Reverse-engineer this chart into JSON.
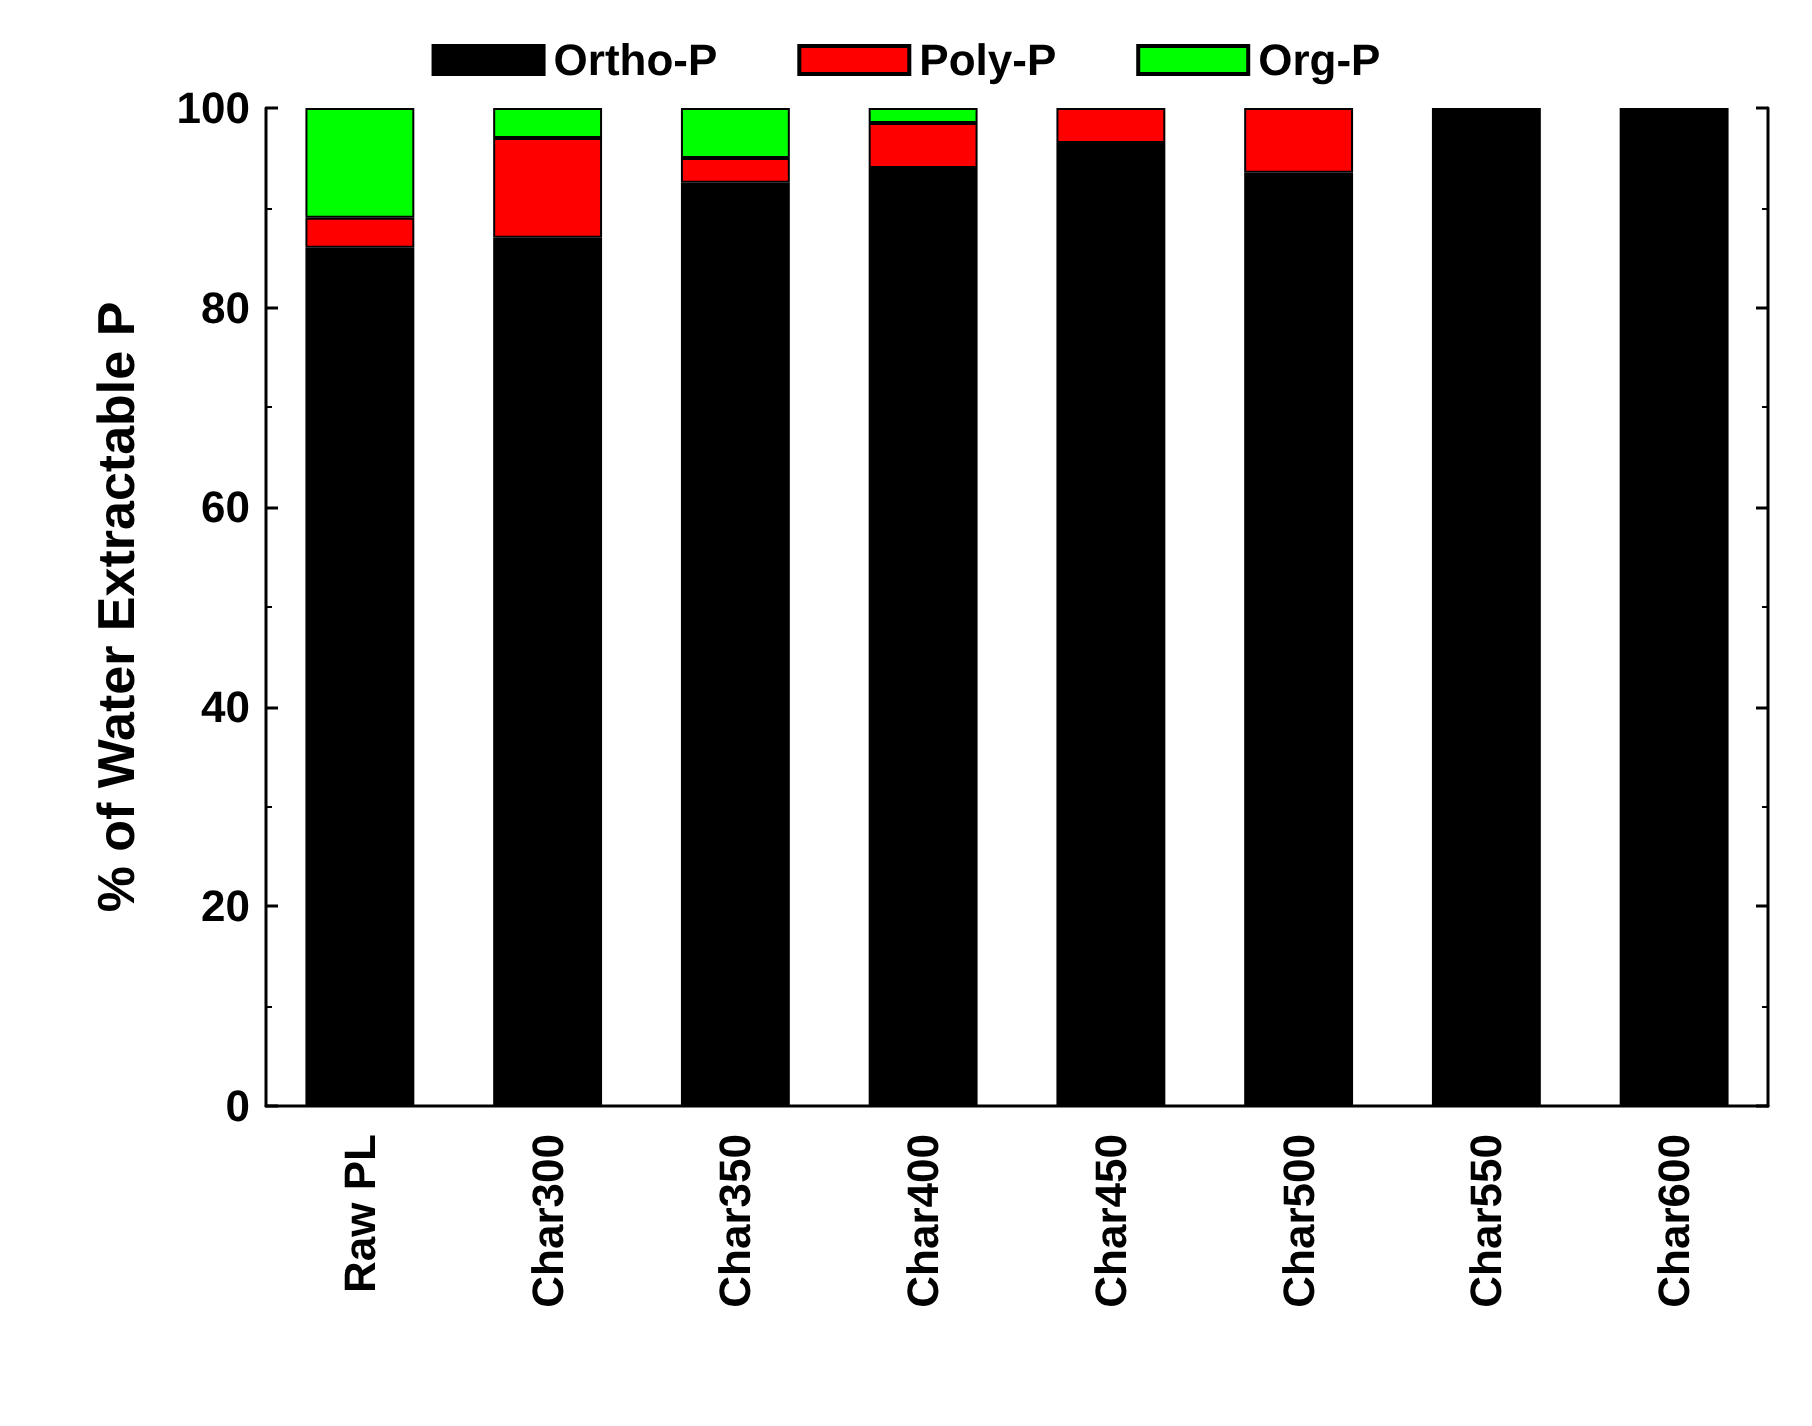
{
  "chart_data": {
    "type": "bar",
    "stacked": true,
    "ylabel": "% of Water Extractable P",
    "categories": [
      "Raw PL",
      "Char300",
      "Char350",
      "Char400",
      "Char450",
      "Char500",
      "Char550",
      "Char600"
    ],
    "series": [
      {
        "name": "Ortho-P",
        "color": "#000000",
        "values": [
          86,
          87,
          92.5,
          94,
          96.5,
          93.5,
          100,
          100
        ]
      },
      {
        "name": "Poly-P",
        "color": "#ff0000",
        "values": [
          3,
          10,
          2.5,
          4.5,
          3.5,
          6.5,
          null,
          null
        ]
      },
      {
        "name": "Org-P",
        "color": "#00ff00",
        "values": [
          11,
          3,
          5,
          1.5,
          null,
          null,
          null,
          null
        ]
      }
    ],
    "ylim": [
      0,
      100
    ],
    "yticks": [
      0,
      20,
      40,
      60,
      80,
      100
    ],
    "grid": false,
    "legend": "top"
  }
}
